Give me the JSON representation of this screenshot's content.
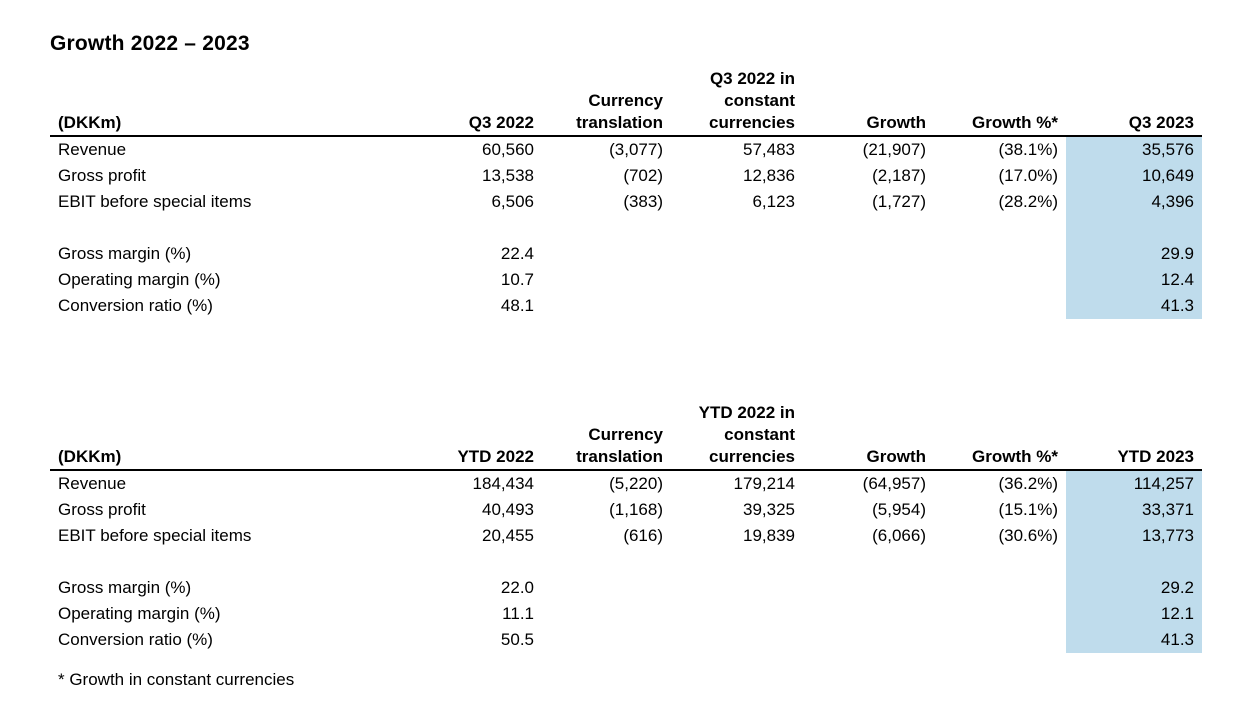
{
  "title": "Growth 2022 – 2023",
  "table_q3": {
    "headers": [
      "(DKKm)",
      "Q3 2022",
      "Currency\ntranslation",
      "Q3 2022 in\nconstant\ncurrencies",
      "Growth",
      "Growth %*",
      "Q3 2023"
    ],
    "rows": [
      [
        "Revenue",
        "60,560",
        "(3,077)",
        "57,483",
        "(21,907)",
        "(38.1%)",
        "35,576"
      ],
      [
        "Gross profit",
        "13,538",
        "(702)",
        "12,836",
        "(2,187)",
        "(17.0%)",
        "10,649"
      ],
      [
        "EBIT before special items",
        "6,506",
        "(383)",
        "6,123",
        "(1,727)",
        "(28.2%)",
        "4,396"
      ]
    ],
    "ratios": [
      [
        "Gross margin (%)",
        "22.4",
        "29.9"
      ],
      [
        "Operating margin (%)",
        "10.7",
        "12.4"
      ],
      [
        "Conversion ratio (%)",
        "48.1",
        "41.3"
      ]
    ]
  },
  "table_ytd": {
    "headers": [
      "(DKKm)",
      "YTD 2022",
      "Currency\ntranslation",
      "YTD 2022 in\nconstant\ncurrencies",
      "Growth",
      "Growth %*",
      "YTD 2023"
    ],
    "rows": [
      [
        "Revenue",
        "184,434",
        "(5,220)",
        "179,214",
        "(64,957)",
        "(36.2%)",
        "114,257"
      ],
      [
        "Gross profit",
        "40,493",
        "(1,168)",
        "39,325",
        "(5,954)",
        "(15.1%)",
        "33,371"
      ],
      [
        "EBIT before special items",
        "20,455",
        "(616)",
        "19,839",
        "(6,066)",
        "(30.6%)",
        "13,773"
      ]
    ],
    "ratios": [
      [
        "Gross margin (%)",
        "22.0",
        "29.2"
      ],
      [
        "Operating margin (%)",
        "11.1",
        "12.1"
      ],
      [
        "Conversion ratio (%)",
        "50.5",
        "41.3"
      ]
    ]
  },
  "footnote": "* Growth in constant currencies",
  "colors": {
    "highlight": "#bfdcec",
    "text": "#000000"
  }
}
